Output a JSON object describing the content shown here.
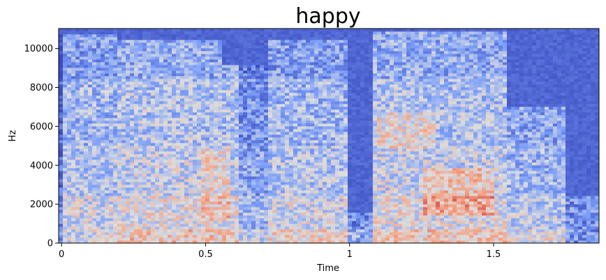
{
  "chart_data": {
    "type": "heatmap",
    "title": "happy",
    "xlabel": "Time",
    "ylabel": "Hz",
    "xlim": [
      -0.01,
      1.866
    ],
    "ylim": [
      0,
      11025
    ],
    "x_ticks": [
      {
        "value": 0,
        "label": "0"
      },
      {
        "value": 0.5,
        "label": "0.5"
      },
      {
        "value": 1,
        "label": "1"
      },
      {
        "value": 1.5,
        "label": "1.5"
      }
    ],
    "y_ticks": [
      {
        "value": 0,
        "label": "0"
      },
      {
        "value": 2000,
        "label": "2000"
      },
      {
        "value": 4000,
        "label": "4000"
      },
      {
        "value": 6000,
        "label": "6000"
      },
      {
        "value": 8000,
        "label": "8000"
      },
      {
        "value": 10000,
        "label": "10000"
      }
    ],
    "colormap": "coolwarm",
    "grid": false,
    "legend": "none"
  }
}
